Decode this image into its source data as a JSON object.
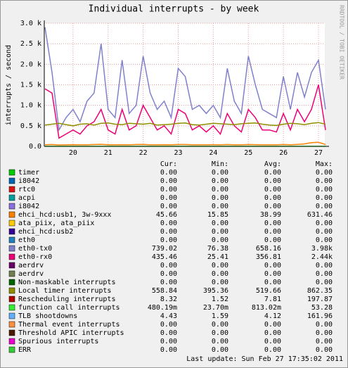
{
  "chart_data": {
    "type": "line",
    "title": "Individual interrupts - by week",
    "y_label": "interrupts / second",
    "side_label": "RRDTOOL / TOBI OETIKER",
    "x": [
      19.2,
      19.4,
      19.6,
      19.8,
      20.0,
      20.2,
      20.4,
      20.6,
      20.8,
      21.0,
      21.2,
      21.4,
      21.6,
      21.8,
      22.0,
      22.2,
      22.4,
      22.6,
      22.8,
      23.0,
      23.2,
      23.4,
      23.6,
      23.8,
      24.0,
      24.2,
      24.4,
      24.6,
      24.8,
      25.0,
      25.2,
      25.4,
      25.6,
      25.8,
      26.0,
      26.2,
      26.4,
      26.6,
      26.8,
      27.0,
      27.2
    ],
    "xlim": [
      19.18,
      27.18
    ],
    "xticks": [
      20,
      21,
      22,
      23,
      24,
      25,
      26,
      27
    ],
    "ylim": [
      0,
      3000
    ],
    "yticks": [
      {
        "value": 0,
        "label": "0.0"
      },
      {
        "value": 500,
        "label": "0.5 k"
      },
      {
        "value": 1000,
        "label": "1.0 k"
      },
      {
        "value": 1500,
        "label": "1.5 k"
      },
      {
        "value": 2000,
        "label": "2.0 k"
      },
      {
        "value": 2500,
        "label": "2.5 k"
      },
      {
        "value": 3000,
        "label": "3.0 k"
      }
    ],
    "grid": true,
    "columns": [
      "Cur:",
      "Min:",
      "Avg:",
      "Max:"
    ],
    "series": [
      {
        "name": "timer",
        "color": "#00cc00",
        "stats": [
          "0.00",
          "0.00",
          "0.00",
          "0.00"
        ]
      },
      {
        "name": "i8042",
        "color": "#0066b3",
        "stats": [
          "0.00",
          "0.00",
          "0.00",
          "0.00"
        ]
      },
      {
        "name": "rtc0",
        "color": "#e01010",
        "stats": [
          "0.00",
          "0.00",
          "0.00",
          "0.00"
        ]
      },
      {
        "name": "acpi",
        "color": "#00a0a0",
        "stats": [
          "0.00",
          "0.00",
          "0.00",
          "0.00"
        ]
      },
      {
        "name": "i8042",
        "color": "#8a6fe0",
        "stats": [
          "0.00",
          "0.00",
          "0.00",
          "0.00"
        ]
      },
      {
        "name": "ehci_hcd:usb1, 3w-9xxx",
        "color": "#ff8000",
        "stats": [
          "45.66",
          "15.85",
          "38.99",
          "631.46"
        ],
        "values": [
          40,
          45,
          35,
          38,
          42,
          40,
          38,
          45,
          50,
          40,
          38,
          42,
          40,
          44,
          48,
          40,
          38,
          42,
          40,
          45,
          44,
          40,
          38,
          40,
          42,
          40,
          45,
          40,
          38,
          44,
          42,
          40,
          38,
          40,
          45,
          40,
          48,
          60,
          90,
          100,
          45
        ]
      },
      {
        "name": "ata_piix, ata_piix",
        "color": "#ffcc00",
        "stats": [
          "0.00",
          "0.00",
          "0.00",
          "0.00"
        ]
      },
      {
        "name": "ehci_hcd:usb2",
        "color": "#330099",
        "stats": [
          "0.00",
          "0.00",
          "0.00",
          "0.00"
        ]
      },
      {
        "name": "eth0",
        "color": "#2080c0",
        "stats": [
          "0.00",
          "0.00",
          "0.00",
          "0.00"
        ]
      },
      {
        "name": "eth0-tx0",
        "color": "#8080cc",
        "stats": [
          "739.02",
          "76.38",
          "658.16",
          "3.98k"
        ],
        "values": [
          2900,
          1800,
          400,
          700,
          900,
          600,
          1100,
          1300,
          2500,
          900,
          700,
          2100,
          800,
          1000,
          2200,
          1300,
          900,
          1100,
          700,
          1900,
          1700,
          900,
          1000,
          800,
          1000,
          700,
          1900,
          1100,
          800,
          2200,
          1500,
          900,
          800,
          700,
          1700,
          900,
          1800,
          1200,
          1800,
          2100,
          900
        ]
      },
      {
        "name": "eth0-rx0",
        "color": "#ee0077",
        "stats": [
          "435.46",
          "25.41",
          "356.81",
          "2.44k"
        ],
        "values": [
          1400,
          1300,
          200,
          300,
          400,
          300,
          500,
          600,
          900,
          400,
          300,
          900,
          400,
          500,
          1000,
          700,
          400,
          500,
          300,
          900,
          800,
          400,
          500,
          350,
          500,
          300,
          800,
          500,
          350,
          900,
          700,
          400,
          400,
          350,
          800,
          400,
          900,
          600,
          900,
          1500,
          400
        ]
      },
      {
        "name": "aerdrv",
        "color": "#660066",
        "stats": [
          "0.00",
          "0.00",
          "0.00",
          "0.00"
        ]
      },
      {
        "name": "aerdrv",
        "color": "#708050",
        "stats": [
          "0.00",
          "0.00",
          "0.00",
          "0.00"
        ]
      },
      {
        "name": "Non-maskable interrupts",
        "color": "#006600",
        "stats": [
          "0.00",
          "0.00",
          "0.00",
          "0.00"
        ]
      },
      {
        "name": "Local timer interrupts",
        "color": "#8f8f00",
        "stats": [
          "558.84",
          "395.36",
          "519.66",
          "862.35"
        ],
        "values": [
          520,
          540,
          560,
          530,
          500,
          540,
          550,
          520,
          560,
          570,
          540,
          530,
          560,
          550,
          540,
          560,
          520,
          530,
          540,
          560,
          570,
          530,
          520,
          540,
          560,
          550,
          540,
          530,
          550,
          560,
          570,
          540,
          520,
          510,
          540,
          560,
          550,
          530,
          560,
          580,
          540
        ]
      },
      {
        "name": "Rescheduling interrupts",
        "color": "#b30000",
        "stats": [
          "8.32",
          "1.52",
          "7.81",
          "197.87"
        ]
      },
      {
        "name": "function call interrupts",
        "color": "#33ee33",
        "stats": [
          "480.19m",
          "23.70m",
          "813.02m",
          "53.28"
        ],
        "values": [
          1,
          1,
          1,
          1,
          1,
          1,
          1,
          1,
          1,
          1,
          1,
          1,
          1,
          1,
          1,
          1,
          1,
          1,
          1,
          1,
          1,
          1,
          1,
          1,
          1,
          1,
          1,
          1,
          1,
          1,
          1,
          1,
          1,
          1,
          1,
          1,
          1,
          1,
          1,
          1,
          1
        ]
      },
      {
        "name": "TLB shootdowns",
        "color": "#60b0ff",
        "stats": [
          "4.43",
          "1.59",
          "4.12",
          "161.96"
        ]
      },
      {
        "name": "Thermal event interrupts",
        "color": "#ff9040",
        "stats": [
          "0.00",
          "0.00",
          "0.00",
          "0.00"
        ]
      },
      {
        "name": "Threshold APIC interrupts",
        "color": "#4a1a00",
        "stats": [
          "0.00",
          "0.00",
          "0.00",
          "0.00"
        ]
      },
      {
        "name": "Spurious interrupts",
        "color": "#ee00cc",
        "stats": [
          "0.00",
          "0.00",
          "0.00",
          "0.00"
        ]
      },
      {
        "name": "ERR",
        "color": "#33cc33",
        "stats": [
          "0.00",
          "0.00",
          "0.00",
          "0.00"
        ]
      }
    ],
    "last_update": "Last update: Sun Feb 27 17:35:02 2011"
  }
}
